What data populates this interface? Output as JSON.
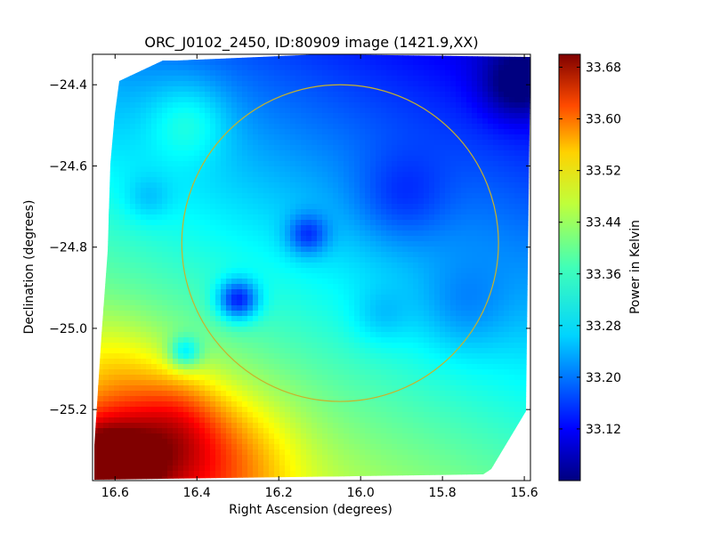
{
  "chart_data": {
    "type": "heatmap",
    "title": "ORC_J0102_2450, ID:80909 image (1421.9,XX)",
    "xlabel": "Right Ascension (degrees)",
    "ylabel": "Declination (degrees)",
    "x_axis": {
      "range": [
        16.655,
        15.585
      ],
      "reversed": true,
      "ticks": [
        16.6,
        16.4,
        16.2,
        16.0,
        15.8,
        15.6
      ],
      "tick_labels": [
        "16.6",
        "16.4",
        "16.2",
        "16.0",
        "15.8",
        "15.6"
      ]
    },
    "y_axis": {
      "range": [
        -25.375,
        -24.325
      ],
      "ticks": [
        -24.4,
        -24.6,
        -24.8,
        -25.0,
        -25.2
      ],
      "tick_labels": [
        "−24.4",
        "−24.6",
        "−24.8",
        "−25.0",
        "−25.2"
      ]
    },
    "colorbar": {
      "label": "Power in Kelvin",
      "colormap": "jet",
      "range": [
        33.04,
        33.7
      ],
      "ticks": [
        33.68,
        33.6,
        33.52,
        33.44,
        33.36,
        33.28,
        33.2,
        33.12
      ],
      "tick_labels": [
        "33.68",
        "33.60",
        "33.52",
        "33.44",
        "33.36",
        "33.28",
        "33.20",
        "33.12"
      ]
    },
    "circle": {
      "center_ra": 16.05,
      "center_dec": -24.79,
      "radius_dec_deg": 0.39,
      "color": "#c8b22a"
    },
    "field_values": {
      "base_plane": {
        "value_at_ra_dec": 33.28,
        "ref_ra": 16.1,
        "ref_dec": -24.85,
        "gradient_per_deg_ra": 0.12,
        "gradient_per_deg_dec": -0.24
      },
      "features": [
        {
          "ra": 16.64,
          "dec": -25.35,
          "peak": 0.3,
          "sigma": 0.09
        },
        {
          "ra": 16.5,
          "dec": -25.32,
          "peak": 0.14,
          "sigma": 0.12
        },
        {
          "ra": 16.32,
          "dec": -25.33,
          "peak": 0.1,
          "sigma": 0.12
        },
        {
          "ra": 16.45,
          "dec": -25.22,
          "peak": 0.08,
          "sigma": 0.08
        },
        {
          "ra": 16.6,
          "dec": -25.1,
          "peak": 0.06,
          "sigma": 0.09
        },
        {
          "ra": 16.42,
          "dec": -24.49,
          "peak": 0.07,
          "sigma": 0.07
        },
        {
          "ra": 16.3,
          "dec": -24.93,
          "peak": -0.18,
          "sigma": 0.035
        },
        {
          "ra": 16.43,
          "dec": -25.06,
          "peak": -0.12,
          "sigma": 0.028
        },
        {
          "ra": 16.13,
          "dec": -24.77,
          "peak": -0.11,
          "sigma": 0.035
        },
        {
          "ra": 15.62,
          "dec": -24.4,
          "peak": -0.1,
          "sigma": 0.06
        },
        {
          "ra": 15.9,
          "dec": -24.68,
          "peak": -0.06,
          "sigma": 0.08
        },
        {
          "ra": 15.75,
          "dec": -24.95,
          "peak": -0.05,
          "sigma": 0.08
        },
        {
          "ra": 16.52,
          "dec": -24.68,
          "peak": -0.04,
          "sigma": 0.04
        },
        {
          "ra": 15.95,
          "dec": -24.97,
          "peak": -0.04,
          "sigma": 0.05
        }
      ]
    },
    "grid": false
  }
}
